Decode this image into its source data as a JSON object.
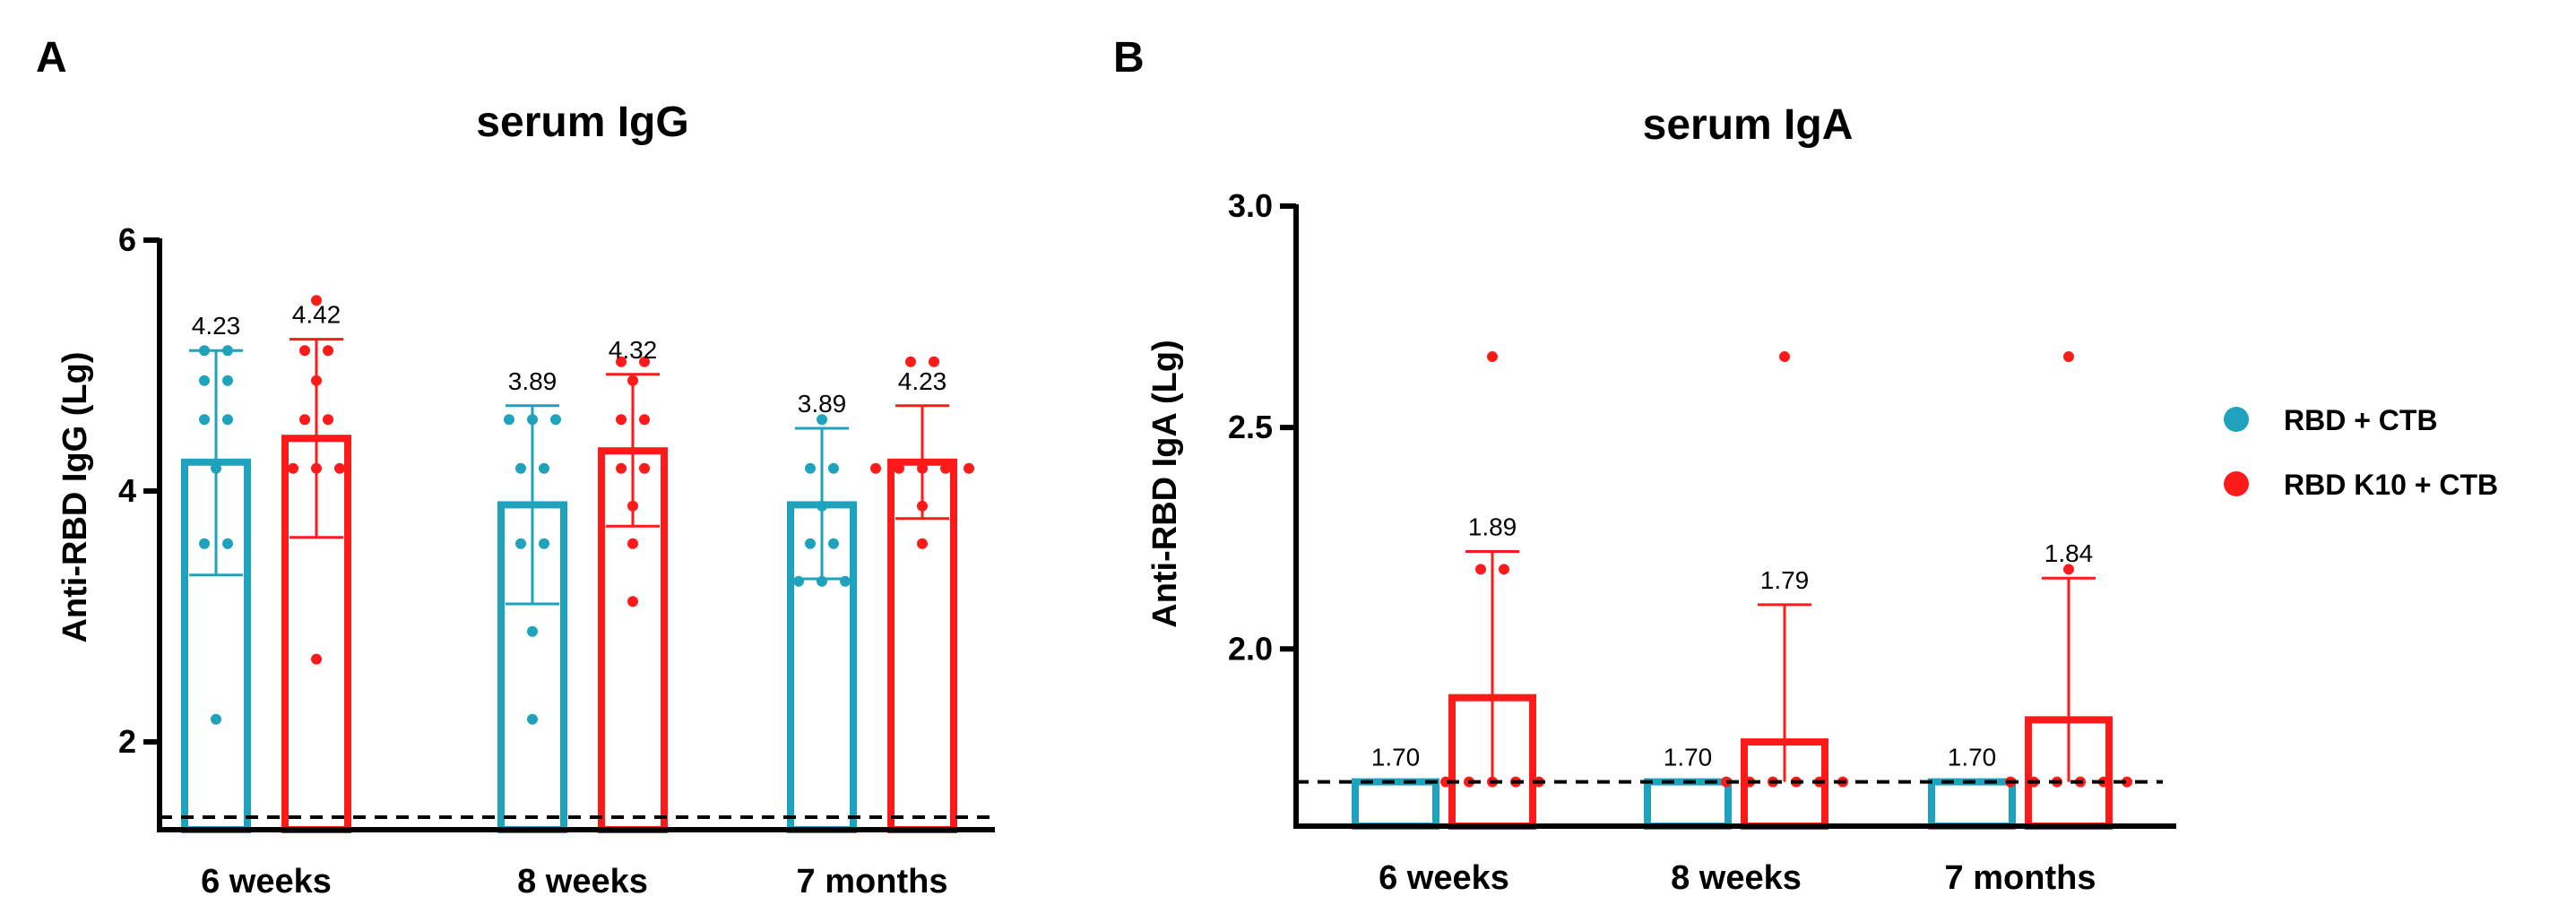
{
  "colors": {
    "rbd_ctb": "#1FA3BC",
    "rbd_k10_ctb": "#FF1A1A",
    "axis": "#000000"
  },
  "legend": [
    {
      "name": "RBD + CTB",
      "color": "#1FA3BC"
    },
    {
      "name": "RBD K10 + CTB",
      "color": "#FF1A1A"
    }
  ],
  "chart_data": [
    {
      "panel": "A",
      "type": "bar",
      "title": "serum IgG",
      "xlabel": "",
      "ylabel": "Anti-RBD IgG (Lg)",
      "ylim": [
        1.3,
        6
      ],
      "yticks": [
        2,
        4,
        6
      ],
      "ytick_labels": [
        "2",
        "4",
        "6"
      ],
      "baseline": 1.4,
      "categories": [
        "6 weeks",
        "8 weeks",
        "7 months"
      ],
      "series": [
        {
          "name": "RBD + CTB",
          "values": [
            4.23,
            3.89,
            3.89
          ],
          "value_labels": [
            "4.23",
            "3.89",
            "3.89"
          ],
          "err_low": [
            3.33,
            3.1,
            3.3
          ],
          "err_high": [
            5.12,
            4.68,
            4.5
          ],
          "points": [
            [
              5.12,
              5.12,
              4.88,
              4.88,
              4.57,
              4.57,
              4.18,
              3.58,
              3.58,
              2.18
            ],
            [
              4.57,
              4.57,
              4.57,
              4.18,
              4.18,
              3.58,
              3.58,
              2.88,
              2.18
            ],
            [
              4.57,
              4.18,
              4.18,
              3.88,
              3.58,
              3.58,
              3.28,
              3.28,
              3.28
            ]
          ]
        },
        {
          "name": "RBD K10 + CTB",
          "values": [
            4.42,
            4.32,
            4.23
          ],
          "value_labels": [
            "4.42",
            "4.32",
            "4.23"
          ],
          "err_low": [
            3.63,
            3.72,
            3.78
          ],
          "err_high": [
            5.21,
            4.93,
            4.68
          ],
          "points": [
            [
              5.52,
              5.12,
              5.12,
              4.88,
              4.57,
              4.57,
              4.18,
              4.18,
              4.18,
              2.66
            ],
            [
              5.03,
              5.03,
              4.88,
              4.57,
              4.57,
              4.18,
              4.18,
              3.88,
              3.58,
              3.12
            ],
            [
              5.03,
              5.03,
              4.18,
              4.18,
              4.18,
              4.18,
              4.18,
              3.88,
              3.58
            ]
          ]
        }
      ]
    },
    {
      "panel": "B",
      "type": "bar",
      "title": "serum IgA",
      "xlabel": "",
      "ylabel": "Anti-RBD IgA (Lg)",
      "ylim": [
        1.6,
        3.0
      ],
      "yticks": [
        2.0,
        2.5,
        3.0
      ],
      "ytick_labels": [
        "2.0",
        "2.5",
        "3.0"
      ],
      "baseline": 1.7,
      "categories": [
        "6 weeks",
        "8 weeks",
        "7 months"
      ],
      "series": [
        {
          "name": "RBD + CTB",
          "values": [
            1.7,
            1.7,
            1.7
          ],
          "value_labels": [
            "1.70",
            "1.70",
            "1.70"
          ],
          "err_low": [
            1.7,
            1.7,
            1.7
          ],
          "err_high": [
            1.7,
            1.7,
            1.7
          ],
          "points": [
            [],
            [],
            []
          ]
        },
        {
          "name": "RBD K10 + CTB",
          "values": [
            1.89,
            1.79,
            1.84
          ],
          "value_labels": [
            "1.89",
            "1.79",
            "1.84"
          ],
          "err_low": [
            1.7,
            1.7,
            1.7
          ],
          "err_high": [
            2.22,
            2.1,
            2.16
          ],
          "points": [
            [
              2.66,
              2.18,
              2.18,
              1.7,
              1.7,
              1.7,
              1.7,
              1.7
            ],
            [
              2.66,
              1.7,
              1.7,
              1.7,
              1.7,
              1.7,
              1.7
            ],
            [
              2.66,
              2.18,
              1.7,
              1.7,
              1.7,
              1.7,
              1.7,
              1.7
            ]
          ]
        }
      ]
    }
  ]
}
